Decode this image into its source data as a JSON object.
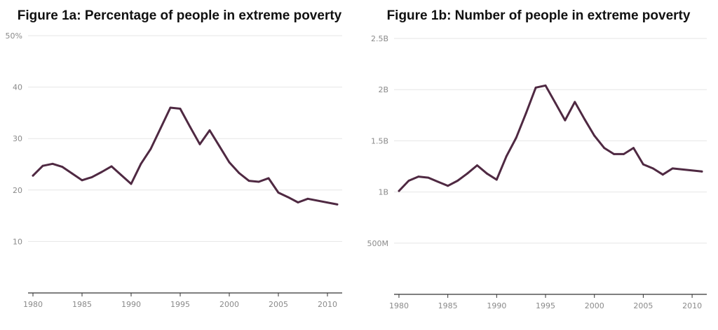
{
  "charts": [
    {
      "id": "a",
      "type": "line",
      "title": "Figure 1a: Percentage of people in extreme poverty",
      "color": "#4f2942",
      "ylim": [
        0,
        50
      ],
      "yticks": [
        10,
        20,
        30,
        40,
        50
      ],
      "ytick_labels": [
        "10",
        "20",
        "30",
        "40",
        "50%"
      ],
      "xlim": [
        1979.5,
        2011.5
      ],
      "xticks": [
        1980,
        1985,
        1990,
        1995,
        2000,
        2005,
        2010
      ],
      "xtick_labels": [
        "1980",
        "1985",
        "1990",
        "1995",
        "2000",
        "2005",
        "2010"
      ],
      "series": [
        {
          "name": "Percentage of people in extreme poverty",
          "x": [
            1980,
            1981,
            1982,
            1983,
            1984,
            1985,
            1986,
            1987,
            1988,
            1989,
            1990,
            1991,
            1992,
            1993,
            1994,
            1995,
            1996,
            1997,
            1998,
            1999,
            2000,
            2001,
            2002,
            2003,
            2004,
            2005,
            2006,
            2007,
            2008,
            2011
          ],
          "y": [
            22.8,
            24.7,
            25.1,
            24.5,
            23.2,
            21.9,
            22.5,
            23.5,
            24.6,
            22.9,
            21.2,
            25.1,
            28.0,
            32.0,
            36.0,
            35.8,
            32.3,
            28.9,
            31.6,
            28.5,
            25.4,
            23.3,
            21.8,
            21.6,
            22.3,
            19.5,
            18.6,
            17.6,
            18.3,
            17.2
          ]
        }
      ]
    },
    {
      "id": "b",
      "type": "line",
      "title": "Figure 1b: Number of people in extreme poverty",
      "color": "#4f2942",
      "ylim": [
        0,
        2.5
      ],
      "yticks": [
        0.5,
        1.0,
        1.5,
        2.0,
        2.5
      ],
      "ytick_labels": [
        "500M",
        "1B",
        "1.5B",
        "2B",
        "2.5B"
      ],
      "xlim": [
        1979.5,
        2011.5
      ],
      "xticks": [
        1980,
        1985,
        1990,
        1995,
        2000,
        2005,
        2010
      ],
      "xtick_labels": [
        "1980",
        "1985",
        "1990",
        "1995",
        "2000",
        "2005",
        "2010"
      ],
      "series": [
        {
          "name": "Number of people in extreme poverty (billions)",
          "x": [
            1980,
            1981,
            1982,
            1983,
            1984,
            1985,
            1986,
            1987,
            1988,
            1989,
            1990,
            1991,
            1992,
            1993,
            1994,
            1995,
            1996,
            1997,
            1998,
            1999,
            2000,
            2001,
            2002,
            2003,
            2004,
            2005,
            2006,
            2007,
            2008,
            2011
          ],
          "y": [
            1.01,
            1.11,
            1.15,
            1.14,
            1.1,
            1.06,
            1.11,
            1.18,
            1.26,
            1.18,
            1.12,
            1.35,
            1.53,
            1.77,
            2.02,
            2.04,
            1.87,
            1.7,
            1.88,
            1.71,
            1.55,
            1.43,
            1.37,
            1.37,
            1.43,
            1.27,
            1.23,
            1.17,
            1.23,
            1.2
          ]
        }
      ]
    }
  ]
}
